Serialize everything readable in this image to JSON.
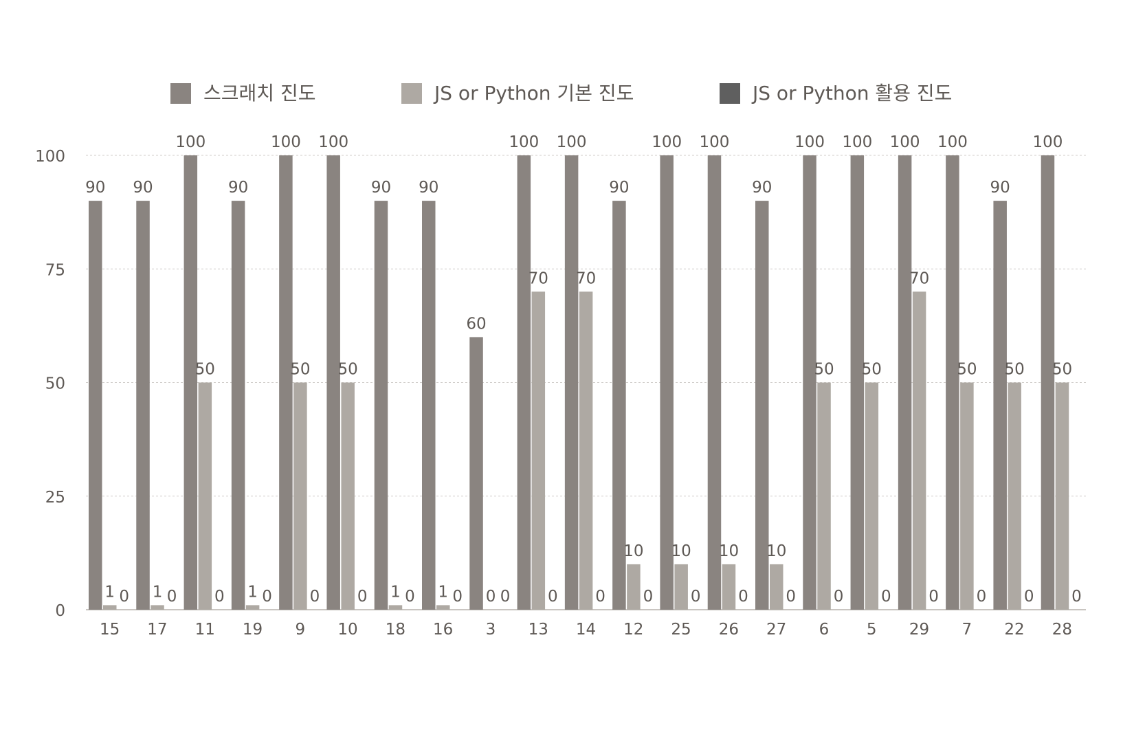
{
  "chart_data": {
    "type": "bar",
    "categories": [
      "15",
      "17",
      "11",
      "19",
      "9",
      "10",
      "18",
      "16",
      "3",
      "13",
      "14",
      "12",
      "25",
      "26",
      "27",
      "6",
      "5",
      "29",
      "7",
      "22",
      "28"
    ],
    "series": [
      {
        "name": "스크래치 진도",
        "color": "#8a8480",
        "values": [
          90,
          90,
          100,
          90,
          100,
          100,
          90,
          90,
          60,
          100,
          100,
          90,
          100,
          100,
          90,
          100,
          100,
          100,
          100,
          90,
          100
        ]
      },
      {
        "name": "JS or Python 기본 진도",
        "color": "#aea9a3",
        "values": [
          1,
          1,
          50,
          1,
          50,
          50,
          1,
          1,
          0,
          70,
          70,
          10,
          10,
          10,
          10,
          50,
          50,
          70,
          50,
          50,
          50
        ]
      },
      {
        "name": "JS or Python 활용 진도",
        "color": "#5f5f5f",
        "values": [
          0,
          0,
          0,
          0,
          0,
          0,
          0,
          0,
          0,
          0,
          0,
          0,
          0,
          0,
          0,
          0,
          0,
          0,
          0,
          0,
          0
        ]
      }
    ],
    "yticks": [
      "0",
      "25",
      "50",
      "75",
      "100"
    ],
    "ylim": [
      0,
      100
    ],
    "grid": true,
    "legend": "top",
    "title": "",
    "xlabel": "",
    "ylabel": ""
  },
  "colors": {
    "axis_text": "#5e5955",
    "grid": "#d0cdca",
    "axis_line": "#c9c5c1"
  }
}
